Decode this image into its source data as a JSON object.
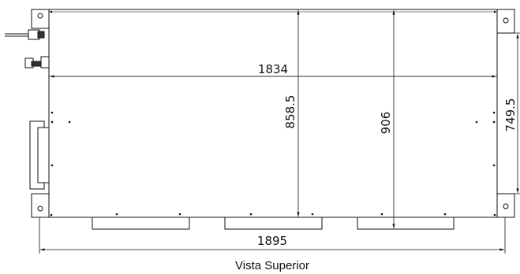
{
  "drawing": {
    "dimensions": {
      "inner_width": "1834",
      "overall_width": "1895",
      "inner_height": "858.5",
      "overall_height": "906",
      "side_height": "749.5"
    },
    "caption": "Vista Superior"
  }
}
